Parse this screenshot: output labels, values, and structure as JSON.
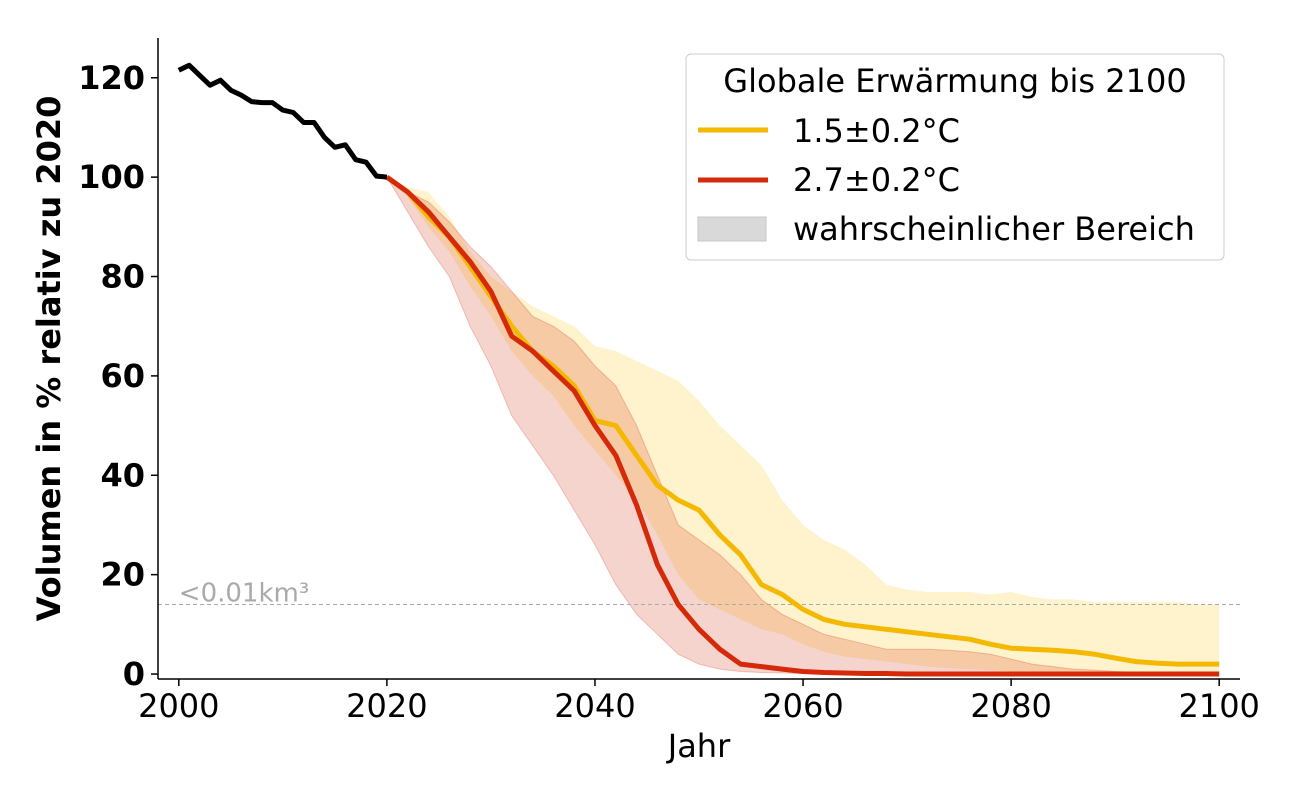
{
  "chart_data": {
    "type": "line",
    "xlabel": "Jahr",
    "ylabel": "Volumen in % relativ zu 2020",
    "xlim": [
      1998,
      2102
    ],
    "ylim": [
      -1,
      128
    ],
    "x_ticks": [
      2000,
      2020,
      2040,
      2060,
      2080,
      2100
    ],
    "y_ticks": [
      0,
      20,
      40,
      60,
      80,
      100,
      120
    ],
    "grid": false,
    "legend": {
      "title": "Globale Erwärmung bis 2100",
      "placement": "top-right",
      "band_label": "wahrscheinlicher Bereich"
    },
    "reference_line": {
      "y": 14,
      "label": "<0.01km³",
      "color": "#aaaaaa"
    },
    "colors": {
      "historical": "#000000",
      "scenario_1": "#f5b800",
      "scenario_2": "#d42a0a",
      "band_1": "#fff0c8",
      "band_2": "#f4c4c4",
      "band_overlap": "#f4c8a4",
      "legend_band": "#d9d9d9"
    },
    "historical": {
      "x": [
        2000,
        2001,
        2002,
        2003,
        2004,
        2005,
        2006,
        2007,
        2008,
        2009,
        2010,
        2011,
        2012,
        2013,
        2014,
        2015,
        2016,
        2017,
        2018,
        2019,
        2020
      ],
      "y": [
        121.5,
        122.5,
        120.5,
        118.5,
        119.5,
        117.5,
        116.5,
        115.2,
        115,
        115,
        113.5,
        113,
        111,
        111,
        108,
        106,
        106.5,
        103.5,
        103,
        100.2,
        100
      ]
    },
    "series": [
      {
        "name": "1.5±0.2°C",
        "x": [
          2020,
          2022,
          2024,
          2026,
          2028,
          2030,
          2032,
          2034,
          2036,
          2038,
          2040,
          2042,
          2044,
          2046,
          2048,
          2050,
          2052,
          2054,
          2056,
          2058,
          2060,
          2062,
          2064,
          2066,
          2068,
          2070,
          2072,
          2074,
          2076,
          2078,
          2080,
          2082,
          2084,
          2086,
          2088,
          2090,
          2092,
          2094,
          2096,
          2098,
          2100
        ],
        "y": [
          100,
          97,
          92,
          88,
          82,
          76,
          70,
          65,
          62,
          58,
          51,
          50,
          44,
          38,
          35,
          33,
          28,
          24,
          18,
          16,
          13,
          11,
          10,
          9.5,
          9,
          8.5,
          8,
          7.5,
          7,
          6,
          5.2,
          5,
          4.8,
          4.5,
          4,
          3.2,
          2.5,
          2.2,
          2,
          2,
          2
        ],
        "upper": [
          100,
          98,
          97,
          92,
          85,
          80,
          77,
          74,
          72,
          70,
          66,
          65,
          63,
          61,
          59,
          55,
          50,
          46,
          42,
          35,
          30,
          27,
          25,
          22,
          18,
          17,
          16.5,
          16.5,
          16.5,
          16,
          16.5,
          15.5,
          15,
          15,
          14.5,
          14.5,
          14.5,
          14.5,
          14.5,
          14,
          14
        ],
        "lower": [
          100,
          96,
          90,
          85,
          78,
          72,
          65,
          60,
          56,
          50,
          45,
          40,
          35,
          28,
          20,
          15,
          13,
          11,
          9,
          8,
          6,
          4.5,
          3.5,
          3,
          2.5,
          2,
          1.5,
          1.2,
          1,
          0.8,
          0.5,
          0.4,
          0.3,
          0.2,
          0.1,
          0,
          0,
          0,
          0,
          0,
          0
        ]
      },
      {
        "name": "2.7±0.2°C",
        "x": [
          2020,
          2022,
          2024,
          2026,
          2028,
          2030,
          2032,
          2034,
          2036,
          2038,
          2040,
          2042,
          2044,
          2046,
          2048,
          2050,
          2052,
          2054,
          2056,
          2058,
          2060,
          2062,
          2064,
          2066,
          2068,
          2070,
          2072,
          2074,
          2076,
          2078,
          2080,
          2082,
          2084,
          2086,
          2088,
          2090,
          2092,
          2094,
          2096,
          2098,
          2100
        ],
        "y": [
          100,
          97,
          93,
          88,
          83,
          77,
          68,
          65,
          61,
          57,
          50,
          44,
          34,
          22,
          14,
          9,
          5,
          2,
          1.5,
          1,
          0.5,
          0.3,
          0.2,
          0.1,
          0.1,
          0,
          0,
          0,
          0,
          0,
          0,
          0,
          0,
          0,
          0,
          0,
          0,
          0,
          0,
          0,
          0
        ],
        "upper": [
          100,
          97,
          95,
          91,
          86,
          82,
          77,
          72,
          70,
          67,
          62,
          58,
          50,
          40,
          30,
          27,
          24,
          20,
          15,
          12,
          10,
          8,
          7,
          6,
          5,
          5,
          5,
          4.8,
          4.5,
          4,
          3,
          2,
          1.5,
          1,
          0.8,
          0.5,
          0.3,
          0.2,
          0.1,
          0,
          0
        ],
        "lower": [
          100,
          93,
          86,
          80,
          70,
          62,
          52,
          46,
          40,
          33,
          26,
          18,
          12,
          8,
          4,
          2,
          1,
          0.5,
          0.3,
          0.2,
          0.1,
          0,
          0,
          0,
          0,
          0,
          0,
          0,
          0,
          0,
          0,
          0,
          0,
          0,
          0,
          0,
          0,
          0,
          0,
          0,
          0
        ]
      }
    ]
  }
}
